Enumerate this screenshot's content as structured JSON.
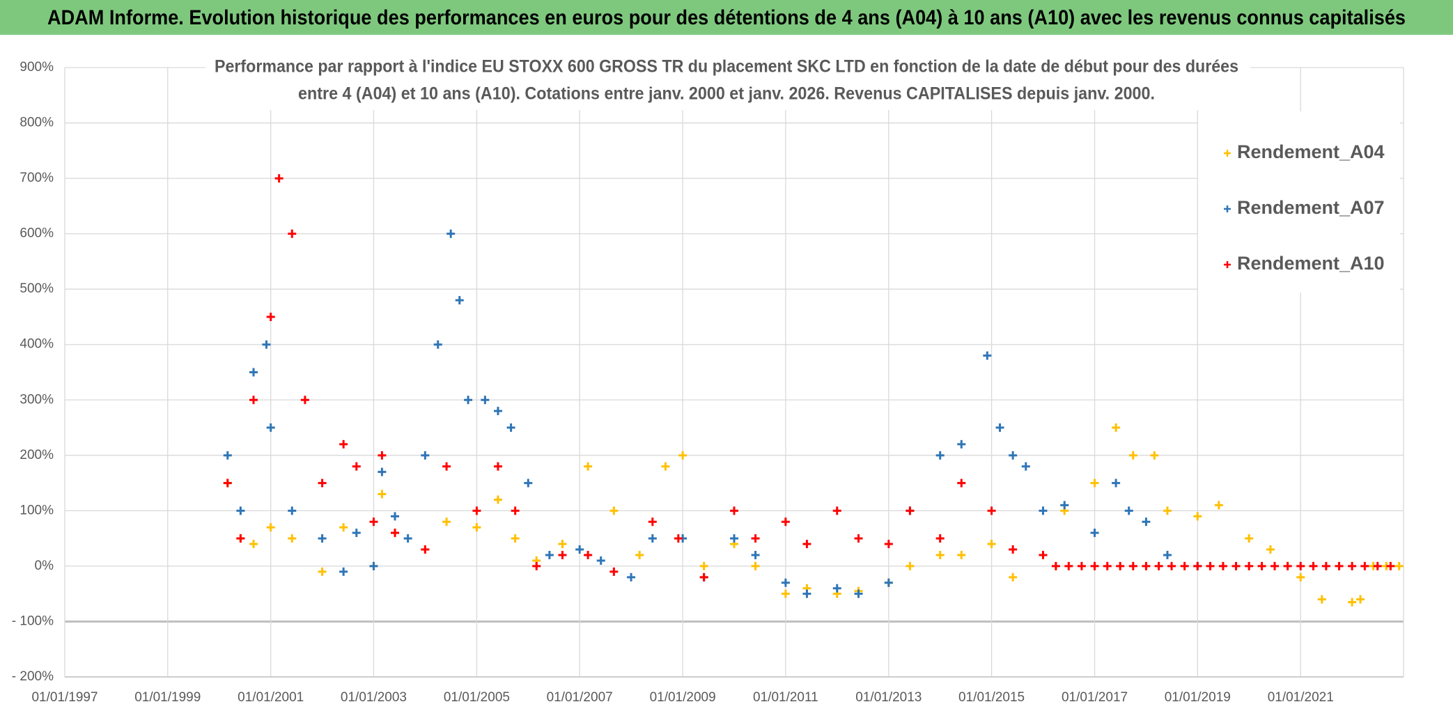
{
  "chart_data": {
    "type": "scatter",
    "title": "ADAM Informe. Evolution historique des performances en euros pour des détentions de 4 ans (A04) à 10 ans (A10) avec les revenus connus capitalisés",
    "subtitle": [
      "Performance par rapport à l'indice EU STOXX 600 GROSS TR  du placement SKC LTD en fonction de la date de début pour des durées",
      "entre 4 (A04) et 10 ans (A10). Cotations entre janv. 2000 et janv. 2026. Revenus CAPITALISES depuis janv. 2000."
    ],
    "xlim": [
      "1997-01-01",
      "2023-01-01"
    ],
    "xticks": [
      {
        "value": "1997-01-01",
        "label": "01/01/1997"
      },
      {
        "value": "1999-01-01",
        "label": "01/01/1999"
      },
      {
        "value": "2001-01-01",
        "label": "01/01/2001"
      },
      {
        "value": "2003-01-01",
        "label": "01/01/2003"
      },
      {
        "value": "2005-01-01",
        "label": "01/01/2005"
      },
      {
        "value": "2007-01-01",
        "label": "01/01/2007"
      },
      {
        "value": "2009-01-01",
        "label": "01/01/2009"
      },
      {
        "value": "2011-01-01",
        "label": "01/01/2011"
      },
      {
        "value": "2013-01-01",
        "label": "01/01/2013"
      },
      {
        "value": "2015-01-01",
        "label": "01/01/2015"
      },
      {
        "value": "2017-01-01",
        "label": "01/01/2017"
      },
      {
        "value": "2019-01-01",
        "label": "01/01/2019"
      },
      {
        "value": "2021-01-01",
        "label": "01/01/2021"
      }
    ],
    "ylim": [
      -200,
      900
    ],
    "yticks": [
      {
        "value": -200,
        "label": "- 200%"
      },
      {
        "value": -100,
        "label": "- 100%"
      },
      {
        "value": 0,
        "label": "0%"
      },
      {
        "value": 100,
        "label": "100%"
      },
      {
        "value": 200,
        "label": "200%"
      },
      {
        "value": 300,
        "label": "300%"
      },
      {
        "value": 400,
        "label": "400%"
      },
      {
        "value": 500,
        "label": "500%"
      },
      {
        "value": 600,
        "label": "600%"
      },
      {
        "value": 700,
        "label": "700%"
      },
      {
        "value": 800,
        "label": "800%"
      },
      {
        "value": 900,
        "label": "900%"
      }
    ],
    "grid": true,
    "legend": "right",
    "series": [
      {
        "name": "Rendement_A04",
        "color": "#ffc000",
        "x": [
          "2000-03-01",
          "2000-06-01",
          "2000-09-01",
          "2001-01-01",
          "2001-06-01",
          "2002-01-01",
          "2002-06-01",
          "2003-01-01",
          "2003-03-01",
          "2003-06-01",
          "2004-01-01",
          "2004-06-01",
          "2005-01-01",
          "2005-06-01",
          "2005-10-01",
          "2006-03-01",
          "2006-09-01",
          "2007-03-01",
          "2007-09-01",
          "2008-03-01",
          "2008-09-01",
          "2009-01-01",
          "2009-06-01",
          "2010-01-01",
          "2010-06-01",
          "2011-01-01",
          "2011-06-01",
          "2012-01-01",
          "2012-06-01",
          "2013-01-01",
          "2013-06-01",
          "2014-01-01",
          "2014-06-01",
          "2015-01-01",
          "2015-06-01",
          "2016-01-01",
          "2016-06-01",
          "2017-01-01",
          "2017-06-01",
          "2017-10-01",
          "2018-03-01",
          "2018-06-01",
          "2019-01-01",
          "2019-06-01",
          "2020-01-01",
          "2020-06-01",
          "2021-01-01",
          "2021-06-01",
          "2022-01-01",
          "2022-03-01",
          "2022-06-01",
          "2022-09-01",
          "2022-12-01"
        ],
        "values": [
          150,
          50,
          40,
          70,
          50,
          -10,
          70,
          0,
          130,
          60,
          30,
          80,
          70,
          120,
          50,
          10,
          40,
          180,
          100,
          20,
          180,
          200,
          0,
          40,
          0,
          -50,
          -40,
          -50,
          -45,
          -30,
          0,
          20,
          20,
          40,
          -20,
          20,
          100,
          150,
          250,
          200,
          200,
          100,
          90,
          110,
          50,
          30,
          -20,
          -60,
          -65,
          -60,
          0,
          0,
          0
        ]
      },
      {
        "name": "Rendement_A07",
        "color": "#2e75b6",
        "x": [
          "2000-03-01",
          "2000-06-01",
          "2000-09-01",
          "2000-12-01",
          "2001-01-01",
          "2001-06-01",
          "2002-01-01",
          "2002-06-01",
          "2002-09-01",
          "2003-01-01",
          "2003-03-01",
          "2003-06-01",
          "2003-09-01",
          "2004-01-01",
          "2004-04-01",
          "2004-07-01",
          "2004-09-01",
          "2004-11-01",
          "2005-03-01",
          "2005-06-01",
          "2005-09-01",
          "2006-01-01",
          "2006-06-01",
          "2007-01-01",
          "2007-06-01",
          "2008-01-01",
          "2008-06-01",
          "2009-01-01",
          "2009-06-01",
          "2010-01-01",
          "2010-06-01",
          "2011-01-01",
          "2011-06-01",
          "2012-01-01",
          "2012-06-01",
          "2013-01-01",
          "2013-06-01",
          "2014-01-01",
          "2014-06-01",
          "2014-12-01",
          "2015-03-01",
          "2015-06-01",
          "2015-09-01",
          "2016-01-01",
          "2016-06-01",
          "2017-01-01",
          "2017-06-01",
          "2017-09-01",
          "2018-01-01",
          "2018-06-01",
          "2019-01-01"
        ],
        "values": [
          200,
          100,
          350,
          400,
          250,
          100,
          50,
          -10,
          60,
          0,
          170,
          90,
          50,
          200,
          400,
          600,
          480,
          300,
          300,
          280,
          250,
          150,
          20,
          30,
          10,
          -20,
          50,
          50,
          -20,
          50,
          20,
          -30,
          -50,
          -40,
          -50,
          -30,
          100,
          200,
          220,
          380,
          250,
          200,
          180,
          100,
          110,
          60,
          150,
          100,
          80,
          20,
          0
        ]
      },
      {
        "name": "Rendement_A10",
        "color": "#ff0000",
        "x": [
          "2000-03-01",
          "2000-06-01",
          "2000-09-01",
          "2001-01-01",
          "2001-03-01",
          "2001-06-01",
          "2001-09-01",
          "2002-01-01",
          "2002-06-01",
          "2002-09-01",
          "2003-01-01",
          "2003-03-01",
          "2003-06-01",
          "2004-01-01",
          "2004-06-01",
          "2005-01-01",
          "2005-06-01",
          "2005-10-01",
          "2006-03-01",
          "2006-09-01",
          "2007-03-01",
          "2007-09-01",
          "2008-06-01",
          "2008-12-01",
          "2009-06-01",
          "2010-01-01",
          "2010-06-01",
          "2011-01-01",
          "2011-06-01",
          "2012-01-01",
          "2012-06-01",
          "2013-01-01",
          "2013-06-01",
          "2014-01-01",
          "2014-06-01",
          "2015-01-01",
          "2015-06-01",
          "2016-01-01",
          "2016-04-01",
          "2016-07-01",
          "2016-10-01",
          "2017-01-01",
          "2017-04-01",
          "2017-07-01",
          "2017-10-01",
          "2018-01-01",
          "2018-04-01",
          "2018-07-01",
          "2018-10-01",
          "2019-01-01",
          "2019-04-01",
          "2019-07-01",
          "2019-10-01",
          "2020-01-01",
          "2020-04-01",
          "2020-07-01",
          "2020-10-01",
          "2021-01-01",
          "2021-04-01",
          "2021-07-01",
          "2021-10-01",
          "2022-01-01",
          "2022-04-01",
          "2022-07-01",
          "2022-10-01"
        ],
        "values": [
          150,
          50,
          300,
          450,
          700,
          600,
          300,
          150,
          220,
          180,
          80,
          200,
          60,
          30,
          180,
          100,
          180,
          100,
          0,
          20,
          20,
          -10,
          80,
          50,
          -20,
          100,
          50,
          80,
          40,
          100,
          50,
          40,
          100,
          50,
          150,
          100,
          30,
          20,
          0,
          0,
          0,
          0,
          0,
          0,
          0,
          0,
          0,
          0,
          0,
          0,
          0,
          0,
          0,
          0,
          0,
          0,
          0,
          0,
          0,
          0,
          0,
          0,
          0,
          0,
          0
        ]
      }
    ]
  }
}
